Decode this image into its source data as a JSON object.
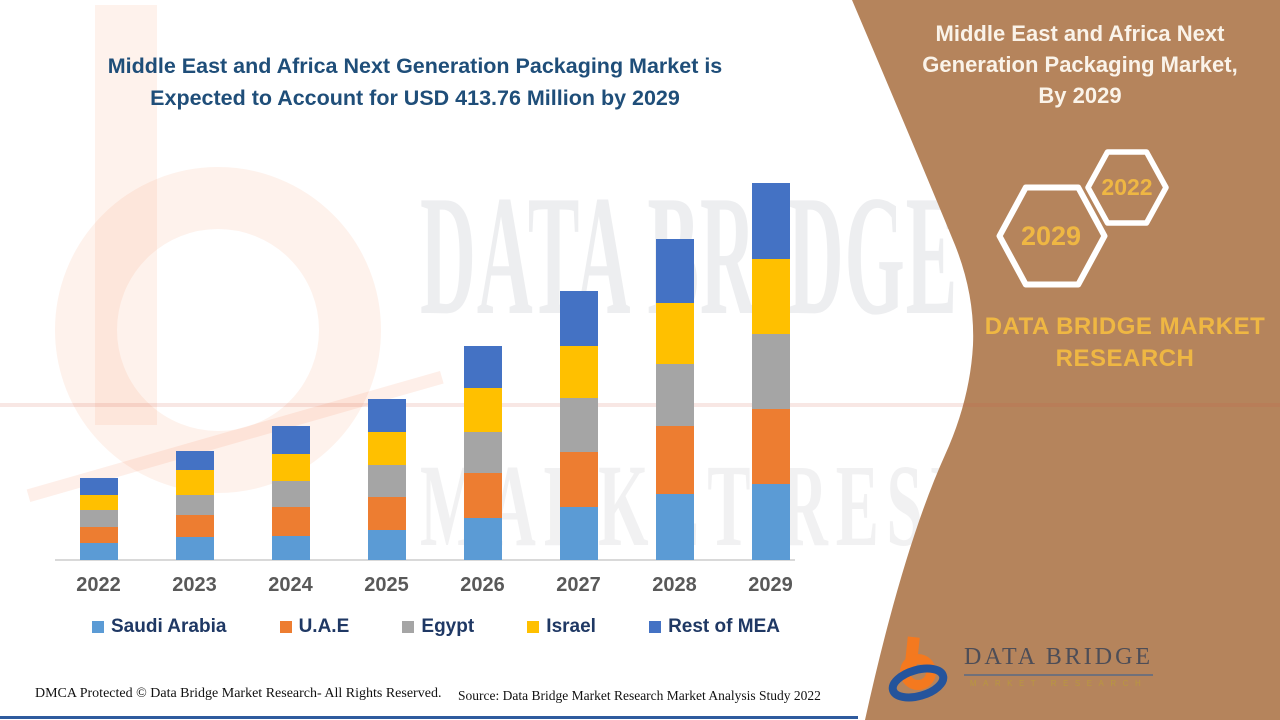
{
  "header": {
    "title_line1": "Middle East and Africa Next Generation Packaging Market is",
    "title_line2": "Expected to Account for USD 413.76 Million by 2029"
  },
  "chart_data": {
    "type": "bar",
    "stacked": true,
    "title": "Middle East and Africa Next Generation Packaging Market is Expected to Account for USD 413.76 Million by 2029",
    "unit": "USD Million",
    "categories": [
      "2022",
      "2023",
      "2024",
      "2025",
      "2026",
      "2027",
      "2028",
      "2029"
    ],
    "series": [
      {
        "name": "Saudi Arabia",
        "color": "#5B9BD5",
        "values": [
          18.7,
          25.2,
          26.3,
          32.9,
          46.1,
          58.2,
          72.4,
          83.4
        ]
      },
      {
        "name": "U.A.E",
        "color": "#ED7D31",
        "values": [
          17.6,
          24.1,
          31.8,
          36.2,
          49.4,
          60.4,
          74.6,
          82.3
        ]
      },
      {
        "name": "Egypt",
        "color": "#A5A5A5",
        "values": [
          18.7,
          22.0,
          28.5,
          35.1,
          45.0,
          59.3,
          68.0,
          82.3
        ]
      },
      {
        "name": "Israel",
        "color": "#FFC000",
        "values": [
          16.5,
          27.4,
          29.6,
          36.2,
          48.3,
          57.1,
          66.9,
          82.3
        ]
      },
      {
        "name": "Rest of MEA",
        "color": "#4472C4",
        "values": [
          18.7,
          20.9,
          30.7,
          36.2,
          46.1,
          60.4,
          70.2,
          83.46
        ]
      }
    ],
    "values_estimated_from_bar_heights": true,
    "total_2029": 413.76,
    "ylim": [
      0,
      420
    ],
    "y_axis_shown": false,
    "gridlines": false,
    "legend_position": "bottom"
  },
  "watermark": {
    "line1": "DATA BRIDGE",
    "line2": "MARKET RESEARCH"
  },
  "right_panel": {
    "title_line1": "Middle East and Africa Next",
    "title_line2": "Generation Packaging Market,",
    "title_line3": "By 2029",
    "hex_year_large": "2029",
    "hex_year_small": "2022",
    "brand_line1": "DATA BRIDGE MARKET",
    "brand_line2": "RESEARCH",
    "logo_title": "DATA BRIDGE",
    "logo_subtitle": "MARKET RESEARCH"
  },
  "footer": {
    "dmca": "DMCA Protected © Data Bridge Market Research- All Rights Reserved.",
    "source": "Source: Data Bridge Market Research Market Analysis Study 2022"
  },
  "colors": {
    "title_blue": "#1F4E79",
    "panel_brown": "#B5845C",
    "gold": "#EFB743",
    "cream": "#FAF3E9",
    "axis_gray": "#D9D9D9",
    "xlabel_gray": "#595959",
    "legend_navy": "#1F3864",
    "bottom_line_blue": "#2F5B9E",
    "logo_orange": "#F4791F",
    "logo_blue": "#24549C"
  }
}
